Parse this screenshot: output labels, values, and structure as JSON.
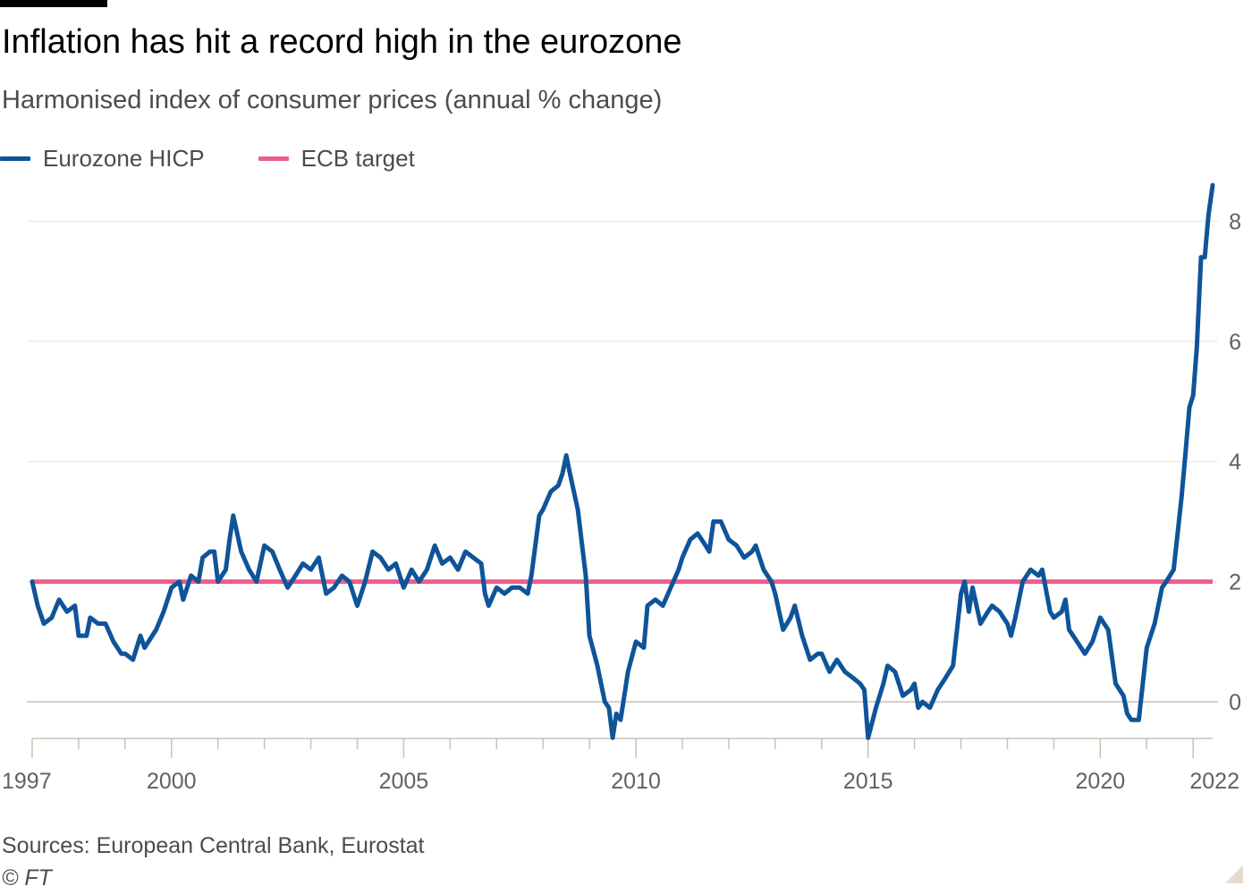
{
  "colors": {
    "hicp": "#0f5499",
    "target": "#eb5e8d",
    "grid": "#e9e3dd",
    "axis": "#ccc1b7"
  },
  "chart_data": {
    "type": "line",
    "title": "Inflation has hit a record high in the eurozone",
    "subtitle": "Harmonised index of consumer prices (annual % change)",
    "xlabel": "",
    "ylabel": "",
    "xlim": [
      1997.0,
      2022.42
    ],
    "ylim": [
      -0.6,
      8.8
    ],
    "grid": true,
    "legend_position": "top-left",
    "x_ticks": [
      1997,
      2000,
      2005,
      2010,
      2015,
      2020,
      2022
    ],
    "x_tick_labels": [
      "1997",
      "2000",
      "2005",
      "2010",
      "2015",
      "2020",
      "2022"
    ],
    "y_ticks": [
      0,
      2,
      4,
      6,
      8
    ],
    "y_tick_labels": [
      "0",
      "2",
      "4",
      "6",
      "8"
    ],
    "series": [
      {
        "name": "Eurozone HICP",
        "points": [
          [
            1997.0,
            2.0
          ],
          [
            1997.12,
            1.6
          ],
          [
            1997.25,
            1.3
          ],
          [
            1997.42,
            1.4
          ],
          [
            1997.58,
            1.7
          ],
          [
            1997.75,
            1.5
          ],
          [
            1997.92,
            1.6
          ],
          [
            1998.0,
            1.1
          ],
          [
            1998.17,
            1.1
          ],
          [
            1998.25,
            1.4
          ],
          [
            1998.42,
            1.3
          ],
          [
            1998.58,
            1.3
          ],
          [
            1998.75,
            1.0
          ],
          [
            1998.92,
            0.8
          ],
          [
            1999.0,
            0.8
          ],
          [
            1999.17,
            0.7
          ],
          [
            1999.33,
            1.1
          ],
          [
            1999.42,
            0.9
          ],
          [
            1999.67,
            1.2
          ],
          [
            1999.83,
            1.5
          ],
          [
            2000.0,
            1.9
          ],
          [
            2000.17,
            2.0
          ],
          [
            2000.25,
            1.7
          ],
          [
            2000.42,
            2.1
          ],
          [
            2000.58,
            2.0
          ],
          [
            2000.67,
            2.4
          ],
          [
            2000.83,
            2.5
          ],
          [
            2000.92,
            2.5
          ],
          [
            2001.0,
            2.0
          ],
          [
            2001.17,
            2.2
          ],
          [
            2001.25,
            2.7
          ],
          [
            2001.33,
            3.1
          ],
          [
            2001.5,
            2.5
          ],
          [
            2001.67,
            2.2
          ],
          [
            2001.83,
            2.0
          ],
          [
            2002.0,
            2.6
          ],
          [
            2002.17,
            2.5
          ],
          [
            2002.33,
            2.2
          ],
          [
            2002.5,
            1.9
          ],
          [
            2002.67,
            2.1
          ],
          [
            2002.83,
            2.3
          ],
          [
            2003.0,
            2.2
          ],
          [
            2003.17,
            2.4
          ],
          [
            2003.33,
            1.8
          ],
          [
            2003.5,
            1.9
          ],
          [
            2003.67,
            2.1
          ],
          [
            2003.83,
            2.0
          ],
          [
            2004.0,
            1.6
          ],
          [
            2004.17,
            2.0
          ],
          [
            2004.33,
            2.5
          ],
          [
            2004.5,
            2.4
          ],
          [
            2004.67,
            2.2
          ],
          [
            2004.83,
            2.3
          ],
          [
            2005.0,
            1.9
          ],
          [
            2005.17,
            2.2
          ],
          [
            2005.33,
            2.0
          ],
          [
            2005.5,
            2.2
          ],
          [
            2005.67,
            2.6
          ],
          [
            2005.83,
            2.3
          ],
          [
            2006.0,
            2.4
          ],
          [
            2006.17,
            2.2
          ],
          [
            2006.33,
            2.5
          ],
          [
            2006.5,
            2.4
          ],
          [
            2006.67,
            2.3
          ],
          [
            2006.75,
            1.8
          ],
          [
            2006.83,
            1.6
          ],
          [
            2007.0,
            1.9
          ],
          [
            2007.17,
            1.8
          ],
          [
            2007.33,
            1.9
          ],
          [
            2007.5,
            1.9
          ],
          [
            2007.67,
            1.8
          ],
          [
            2007.75,
            2.1
          ],
          [
            2007.92,
            3.1
          ],
          [
            2008.0,
            3.2
          ],
          [
            2008.17,
            3.5
          ],
          [
            2008.33,
            3.6
          ],
          [
            2008.42,
            3.8
          ],
          [
            2008.5,
            4.1
          ],
          [
            2008.58,
            3.8
          ],
          [
            2008.75,
            3.2
          ],
          [
            2008.92,
            2.1
          ],
          [
            2009.0,
            1.1
          ],
          [
            2009.17,
            0.6
          ],
          [
            2009.33,
            0.0
          ],
          [
            2009.42,
            -0.1
          ],
          [
            2009.5,
            -0.6
          ],
          [
            2009.58,
            -0.2
          ],
          [
            2009.67,
            -0.3
          ],
          [
            2009.75,
            0.1
          ],
          [
            2009.83,
            0.5
          ],
          [
            2010.0,
            1.0
          ],
          [
            2010.17,
            0.9
          ],
          [
            2010.25,
            1.6
          ],
          [
            2010.42,
            1.7
          ],
          [
            2010.58,
            1.6
          ],
          [
            2010.75,
            1.9
          ],
          [
            2010.92,
            2.2
          ],
          [
            2011.0,
            2.4
          ],
          [
            2011.17,
            2.7
          ],
          [
            2011.33,
            2.8
          ],
          [
            2011.5,
            2.6
          ],
          [
            2011.58,
            2.5
          ],
          [
            2011.67,
            3.0
          ],
          [
            2011.83,
            3.0
          ],
          [
            2012.0,
            2.7
          ],
          [
            2012.17,
            2.6
          ],
          [
            2012.33,
            2.4
          ],
          [
            2012.5,
            2.5
          ],
          [
            2012.58,
            2.6
          ],
          [
            2012.75,
            2.2
          ],
          [
            2012.92,
            2.0
          ],
          [
            2013.0,
            1.8
          ],
          [
            2013.17,
            1.2
          ],
          [
            2013.33,
            1.4
          ],
          [
            2013.42,
            1.6
          ],
          [
            2013.58,
            1.1
          ],
          [
            2013.75,
            0.7
          ],
          [
            2013.92,
            0.8
          ],
          [
            2014.0,
            0.8
          ],
          [
            2014.17,
            0.5
          ],
          [
            2014.33,
            0.7
          ],
          [
            2014.5,
            0.5
          ],
          [
            2014.67,
            0.4
          ],
          [
            2014.83,
            0.3
          ],
          [
            2014.92,
            0.2
          ],
          [
            2015.0,
            -0.6
          ],
          [
            2015.17,
            -0.1
          ],
          [
            2015.33,
            0.3
          ],
          [
            2015.42,
            0.6
          ],
          [
            2015.58,
            0.5
          ],
          [
            2015.75,
            0.1
          ],
          [
            2015.92,
            0.2
          ],
          [
            2016.0,
            0.3
          ],
          [
            2016.08,
            -0.1
          ],
          [
            2016.17,
            0.0
          ],
          [
            2016.33,
            -0.1
          ],
          [
            2016.5,
            0.2
          ],
          [
            2016.67,
            0.4
          ],
          [
            2016.83,
            0.6
          ],
          [
            2017.0,
            1.8
          ],
          [
            2017.08,
            2.0
          ],
          [
            2017.17,
            1.5
          ],
          [
            2017.25,
            1.9
          ],
          [
            2017.42,
            1.3
          ],
          [
            2017.58,
            1.5
          ],
          [
            2017.67,
            1.6
          ],
          [
            2017.83,
            1.5
          ],
          [
            2018.0,
            1.3
          ],
          [
            2018.08,
            1.1
          ],
          [
            2018.17,
            1.4
          ],
          [
            2018.33,
            2.0
          ],
          [
            2018.5,
            2.2
          ],
          [
            2018.67,
            2.1
          ],
          [
            2018.75,
            2.2
          ],
          [
            2018.92,
            1.5
          ],
          [
            2019.0,
            1.4
          ],
          [
            2019.17,
            1.5
          ],
          [
            2019.25,
            1.7
          ],
          [
            2019.33,
            1.2
          ],
          [
            2019.5,
            1.0
          ],
          [
            2019.67,
            0.8
          ],
          [
            2019.83,
            1.0
          ],
          [
            2020.0,
            1.4
          ],
          [
            2020.17,
            1.2
          ],
          [
            2020.33,
            0.3
          ],
          [
            2020.5,
            0.1
          ],
          [
            2020.58,
            -0.2
          ],
          [
            2020.67,
            -0.3
          ],
          [
            2020.83,
            -0.3
          ],
          [
            2021.0,
            0.9
          ],
          [
            2021.17,
            1.3
          ],
          [
            2021.33,
            1.9
          ],
          [
            2021.42,
            2.0
          ],
          [
            2021.58,
            2.2
          ],
          [
            2021.75,
            3.4
          ],
          [
            2021.83,
            4.1
          ],
          [
            2021.92,
            4.9
          ],
          [
            2022.0,
            5.1
          ],
          [
            2022.08,
            5.9
          ],
          [
            2022.17,
            7.4
          ],
          [
            2022.25,
            7.4
          ],
          [
            2022.33,
            8.1
          ],
          [
            2022.42,
            8.6
          ]
        ]
      },
      {
        "name": "ECB target",
        "points": [
          [
            1997.0,
            2.0
          ],
          [
            2022.42,
            2.0
          ]
        ]
      }
    ],
    "legend": [
      "Eurozone HICP",
      "ECB target"
    ],
    "sources": "Sources: European Central Bank, Eurostat",
    "credit": "© FT"
  }
}
